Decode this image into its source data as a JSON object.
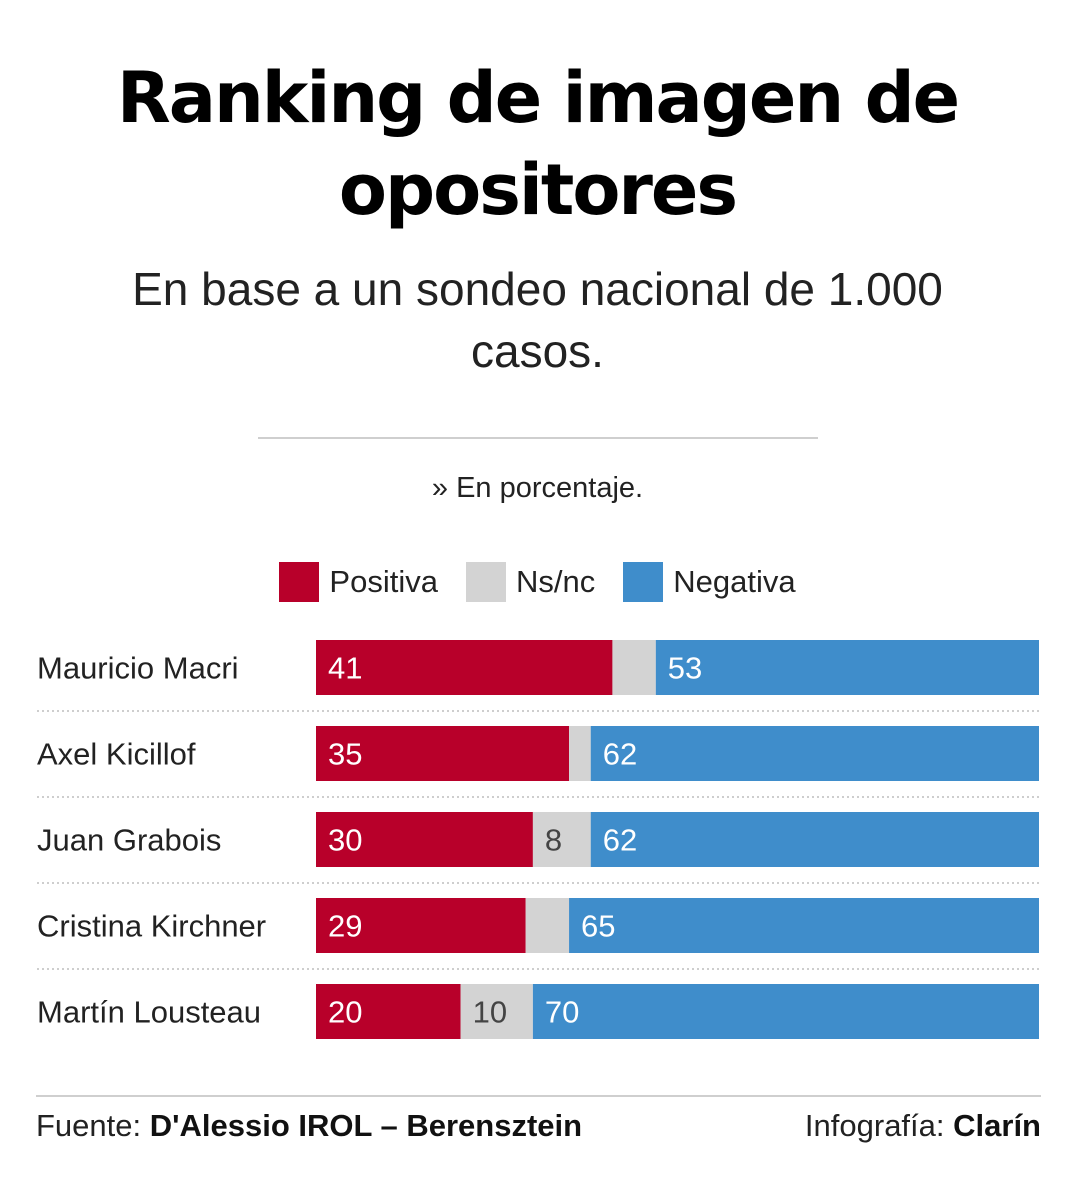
{
  "header": {
    "title_line1": "Ranking de imagen de",
    "title_line2": "opositores",
    "subtitle_line1": "En base a un sondeo nacional de 1.000",
    "subtitle_line2": "casos.",
    "unit_note": "» En porcentaje."
  },
  "legend": [
    {
      "label": "Positiva",
      "color": "#b8002a"
    },
    {
      "label": "Ns/nc",
      "color": "#d3d3d3"
    },
    {
      "label": "Negativa",
      "color": "#3f8dcb"
    }
  ],
  "chart_data": {
    "type": "bar",
    "orientation": "horizontal",
    "stacked": true,
    "categories": [
      "Mauricio Macri",
      "Axel Kicillof",
      "Juan Grabois",
      "Cristina Kirchner",
      "Martín Lousteau"
    ],
    "series": [
      {
        "name": "Positiva",
        "color": "#b8002a",
        "label_color": "#ffffff",
        "values": [
          41,
          35,
          30,
          29,
          20
        ]
      },
      {
        "name": "Ns/nc",
        "color": "#d3d3d3",
        "label_color": "#444444",
        "values": [
          6,
          3,
          8,
          6,
          10
        ]
      },
      {
        "name": "Negativa",
        "color": "#3f8dcb",
        "label_color": "#ffffff",
        "values": [
          53,
          62,
          62,
          65,
          70
        ]
      }
    ],
    "value_labels": [
      [
        "41",
        "",
        "53"
      ],
      [
        "35",
        "",
        "62"
      ],
      [
        "30",
        "8",
        "62"
      ],
      [
        "29",
        "",
        "65"
      ],
      [
        "20",
        "10",
        "70"
      ]
    ],
    "xlim": [
      0,
      100
    ],
    "grid": false
  },
  "footer": {
    "source_prefix": "Fuente: ",
    "source_name": "D'Alessio IROL – Berensztein",
    "credit_prefix": "Infografía: ",
    "credit_name": "Clarín"
  }
}
